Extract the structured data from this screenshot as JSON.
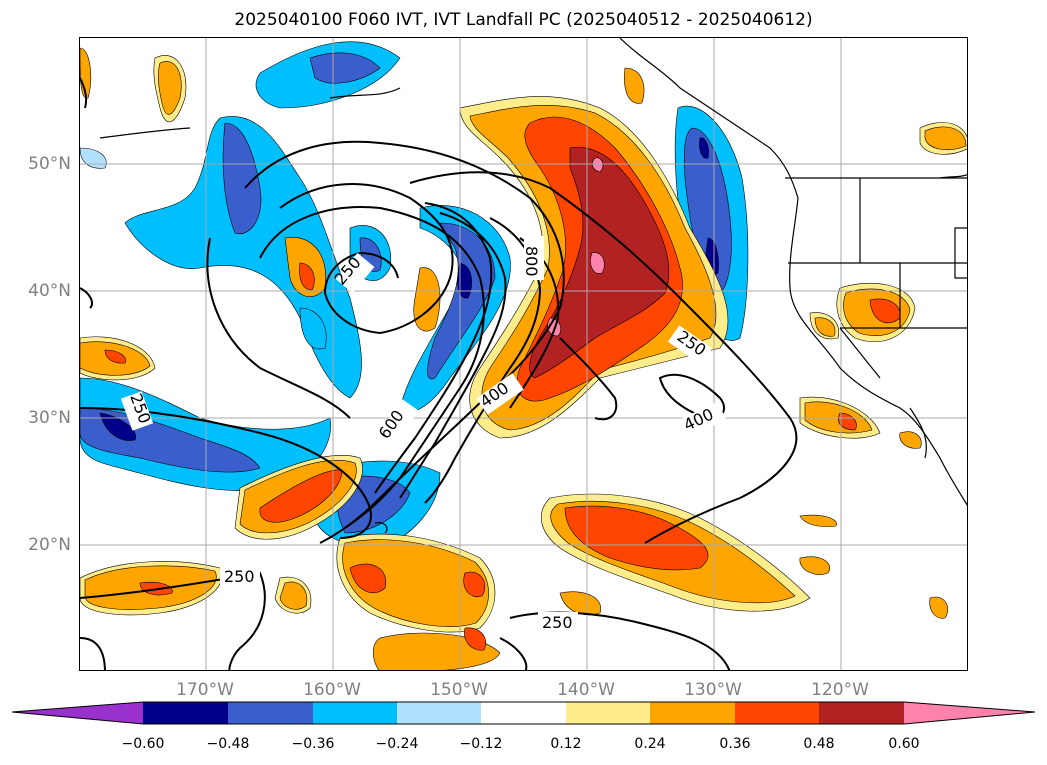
{
  "title": "2025040100 F060 IVT, IVT Landfall PC (2025040512 - 2025040612)",
  "map": {
    "lat_labels": [
      "50°N",
      "40°N",
      "30°N",
      "20°N"
    ],
    "lon_labels": [
      "170°W",
      "160°W",
      "150°W",
      "140°W",
      "130°W",
      "120°W"
    ],
    "lat_values": [
      50,
      40,
      30,
      20
    ],
    "lon_values": [
      -170,
      -160,
      -150,
      -140,
      -130,
      -120
    ],
    "contour_labels": [
      "250",
      "250",
      "250",
      "250",
      "250",
      "400",
      "400",
      "600",
      "800"
    ],
    "gridlines": true
  },
  "colorbar": {
    "ticks": [
      "−0.60",
      "−0.48",
      "−0.36",
      "−0.24",
      "−0.12",
      "0.12",
      "0.24",
      "0.36",
      "0.48",
      "0.60"
    ],
    "colors": {
      "lt_neg": "#9932cc",
      "neg_060": "#00008b",
      "neg_048": "#3a5fcd",
      "neg_036": "#00bfff",
      "neg_024": "#b0e2ff",
      "neutral": "#ffffff",
      "pos_012": "#ffec8b",
      "pos_024": "#ffa500",
      "pos_036": "#ff4500",
      "pos_048": "#b22222",
      "gt_pos": "#ff82ab"
    }
  }
}
